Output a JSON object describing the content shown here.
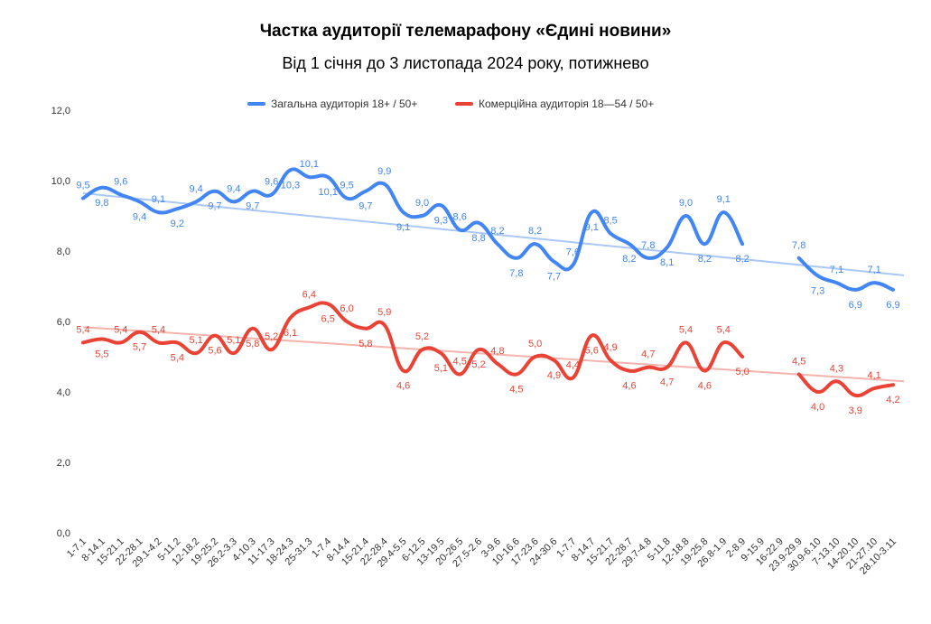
{
  "chart_data": {
    "type": "line",
    "title": "Частка аудиторії телемарафону «Єдині новини»",
    "subtitle": "Від 1 січня до 3 листопада 2024 року, потижнево",
    "ylim": [
      0,
      12
    ],
    "yticks": [
      "0,0",
      "2,0",
      "4,0",
      "6,0",
      "8,0",
      "10,0",
      "12,0"
    ],
    "grid": false,
    "legend_position": "top",
    "categories": [
      "1-7.1",
      "8-14.1",
      "15-21.1",
      "22-28.1",
      "29.1-4.2",
      "5-11.2",
      "12-18.2",
      "19-25.2",
      "26.2-3.3",
      "4-10.3",
      "11-17.3",
      "18-24.3",
      "25-31.3",
      "1-7.4",
      "8-14.4",
      "15-21.4",
      "22-28.4",
      "29.4-5.5",
      "6-12.5",
      "13-19.5",
      "20-26.5",
      "27.5-2.6",
      "3-9.6",
      "10-16.6",
      "17-23.6",
      "24-30.6",
      "1-7.7",
      "8-14.7",
      "15-21.7",
      "22-28.7",
      "29.7-4.8",
      "5-11.8",
      "12-18.8",
      "19-25.8",
      "26.8-1.9",
      "2-8.9",
      "9-15.9",
      "16-22.9",
      "23.9-29.9",
      "30.9-6.10",
      "7-13.10",
      "14-20.10",
      "21-27.10",
      "28.10-3.11"
    ],
    "series": [
      {
        "name": "Загальна аудиторія 18+ / 50+",
        "color": "#4285f4",
        "trend_color": "#a9c8f7",
        "values": [
          9.5,
          9.8,
          9.6,
          9.4,
          9.1,
          9.2,
          9.4,
          9.7,
          9.4,
          9.7,
          9.6,
          10.3,
          10.1,
          10.1,
          9.5,
          9.7,
          9.9,
          9.1,
          9.0,
          9.3,
          8.6,
          8.8,
          8.2,
          7.8,
          8.2,
          7.7,
          7.6,
          9.1,
          8.5,
          8.2,
          7.8,
          8.1,
          9.0,
          8.2,
          9.1,
          8.2,
          null,
          null,
          7.8,
          7.3,
          7.1,
          6.9,
          7.1,
          6.9
        ],
        "labels": [
          "9,5",
          "9,8",
          "9,6",
          "9,4",
          "9,1",
          "9,2",
          "9,4",
          "9,7",
          "9,4",
          "9,7",
          "9,6",
          "10,3",
          "10,1",
          "10,1",
          "9,5",
          "9,7",
          "9,9",
          "9,1",
          "9,0",
          "9,3",
          "8,6",
          "8,8",
          "8,2",
          "7,8",
          "8,2",
          "7,7",
          "7,6",
          "9,1",
          "8,5",
          "8,2",
          "7,8",
          "8,1",
          "9,0",
          "8,2",
          "9,1",
          "8,2",
          "",
          "",
          "7,8",
          "7,3",
          "7,1",
          "6,9",
          "7,1",
          "6,9"
        ],
        "trend": [
          9.64,
          7.31
        ]
      },
      {
        "name": "Комерційна аудиторія 18—54 / 50+",
        "color": "#ea4335",
        "trend_color": "#f4b3ad",
        "values": [
          5.4,
          5.5,
          5.4,
          5.7,
          5.4,
          5.4,
          5.1,
          5.6,
          5.1,
          5.8,
          5.2,
          6.1,
          6.4,
          6.5,
          6.0,
          5.8,
          5.9,
          4.6,
          5.2,
          5.1,
          4.5,
          5.2,
          4.8,
          4.5,
          5.0,
          4.9,
          4.4,
          5.6,
          4.9,
          4.6,
          4.7,
          4.7,
          5.4,
          4.6,
          5.4,
          5.0,
          null,
          null,
          4.5,
          4.0,
          4.3,
          3.9,
          4.1,
          4.2
        ],
        "labels": [
          "5,4",
          "5,5",
          "5,4",
          "5,7",
          "5,4",
          "5,4",
          "5,1",
          "5,6",
          "5,1",
          "5,8",
          "5,2",
          "6,1",
          "6,4",
          "6,5",
          "6,0",
          "5,8",
          "5,9",
          "4,6",
          "5,2",
          "5,1",
          "4,5",
          "5,2",
          "4,8",
          "4,5",
          "5,0",
          "4,9",
          "4,4",
          "5,6",
          "4,9",
          "4,6",
          "4,7",
          "4,7",
          "5,4",
          "4,6",
          "5,4",
          "5,0",
          "",
          "",
          "4,5",
          "4,0",
          "4,3",
          "3,9",
          "4,1",
          "4,2"
        ],
        "trend": [
          5.84,
          4.3
        ]
      }
    ]
  }
}
